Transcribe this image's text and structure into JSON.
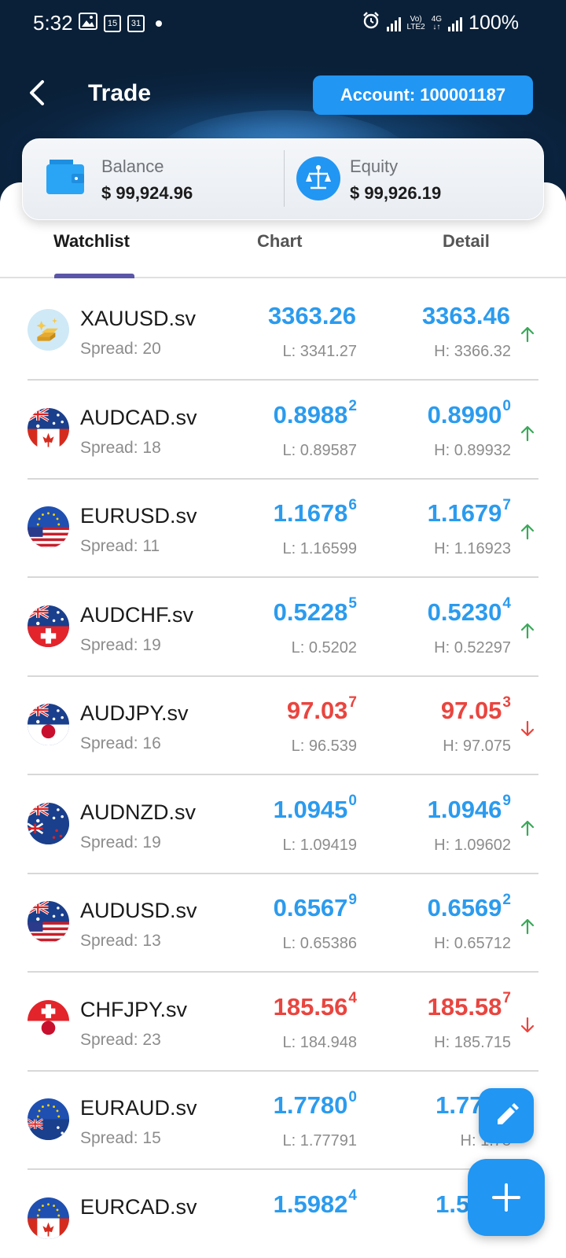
{
  "status_bar": {
    "time": "5:32",
    "left_icons": [
      "image-icon",
      "calendar-15-icon",
      "calendar-31-icon",
      "notification-dot-icon"
    ],
    "cal_a": "15",
    "cal_b": "31",
    "right_icons": [
      "alarm-icon",
      "signal-icon",
      "volte-lte2-icon",
      "4g-icon",
      "signal-icon"
    ],
    "volte": "Vo)",
    "lte": "LTE2",
    "net": "4G",
    "battery": "100%"
  },
  "header": {
    "title": "Trade",
    "account_label": "Account: 100001187"
  },
  "summary": {
    "balance_label": "Balance",
    "balance_value": "$ 99,924.96",
    "equity_label": "Equity",
    "equity_value": "$ 99,926.19"
  },
  "tabs": [
    {
      "label": "Watchlist",
      "active": true
    },
    {
      "label": "Chart",
      "active": false
    },
    {
      "label": "Detail",
      "active": false
    }
  ],
  "watchlist": [
    {
      "symbol": "XAUUSD.sv",
      "spread": "Spread: 20",
      "bid_main": "3363.26",
      "bid_sup": "",
      "ask_main": "3363.46",
      "ask_sup": "",
      "low": "L: 3341.27",
      "high": "H: 3366.32",
      "direction": "up",
      "flag": "gold"
    },
    {
      "symbol": "AUDCAD.sv",
      "spread": "Spread: 18",
      "bid_main": "0.8988",
      "bid_sup": "2",
      "ask_main": "0.8990",
      "ask_sup": "0",
      "low": "L: 0.89587",
      "high": "H: 0.89932",
      "direction": "up",
      "flag": "au-ca"
    },
    {
      "symbol": "EURUSD.sv",
      "spread": "Spread: 11",
      "bid_main": "1.1678",
      "bid_sup": "6",
      "ask_main": "1.1679",
      "ask_sup": "7",
      "low": "L: 1.16599",
      "high": "H: 1.16923",
      "direction": "up",
      "flag": "eu-us"
    },
    {
      "symbol": "AUDCHF.sv",
      "spread": "Spread: 19",
      "bid_main": "0.5228",
      "bid_sup": "5",
      "ask_main": "0.5230",
      "ask_sup": "4",
      "low": "L: 0.5202",
      "high": "H: 0.52297",
      "direction": "up",
      "flag": "au-ch"
    },
    {
      "symbol": "AUDJPY.sv",
      "spread": "Spread: 16",
      "bid_main": "97.03",
      "bid_sup": "7",
      "ask_main": "97.05",
      "ask_sup": "3",
      "low": "L: 96.539",
      "high": "H: 97.075",
      "direction": "down",
      "flag": "au-jp"
    },
    {
      "symbol": "AUDNZD.sv",
      "spread": "Spread: 19",
      "bid_main": "1.0945",
      "bid_sup": "0",
      "ask_main": "1.0946",
      "ask_sup": "9",
      "low": "L: 1.09419",
      "high": "H: 1.09602",
      "direction": "up",
      "flag": "au-nz"
    },
    {
      "symbol": "AUDUSD.sv",
      "spread": "Spread: 13",
      "bid_main": "0.6567",
      "bid_sup": "9",
      "ask_main": "0.6569",
      "ask_sup": "2",
      "low": "L: 0.65386",
      "high": "H: 0.65712",
      "direction": "up",
      "flag": "au-us"
    },
    {
      "symbol": "CHFJPY.sv",
      "spread": "Spread: 23",
      "bid_main": "185.56",
      "bid_sup": "4",
      "ask_main": "185.58",
      "ask_sup": "7",
      "low": "L: 184.948",
      "high": "H: 185.715",
      "direction": "down",
      "flag": "ch-jp"
    },
    {
      "symbol": "EURAUD.sv",
      "spread": "Spread: 15",
      "bid_main": "1.7780",
      "bid_sup": "0",
      "ask_main": "1.7781",
      "ask_sup": "",
      "low": "L: 1.77791",
      "high": "H: 1.78",
      "direction": "up",
      "flag": "eu-au"
    },
    {
      "symbol": "EURCAD.sv",
      "spread": "",
      "bid_main": "1.5982",
      "bid_sup": "4",
      "ask_main": "1.5984",
      "ask_sup": "",
      "low": "",
      "high": "",
      "direction": "up",
      "flag": "eu-ca"
    }
  ],
  "colors": {
    "up": "#2b9bee",
    "down": "#e9453f",
    "arrow_up": "#3aa85a",
    "arrow_down": "#e9453f",
    "accent": "#2196f3",
    "tab_indicator": "#5b57a8"
  },
  "fab": {
    "edit_icon": "pencil-icon",
    "add_icon": "plus-icon"
  }
}
